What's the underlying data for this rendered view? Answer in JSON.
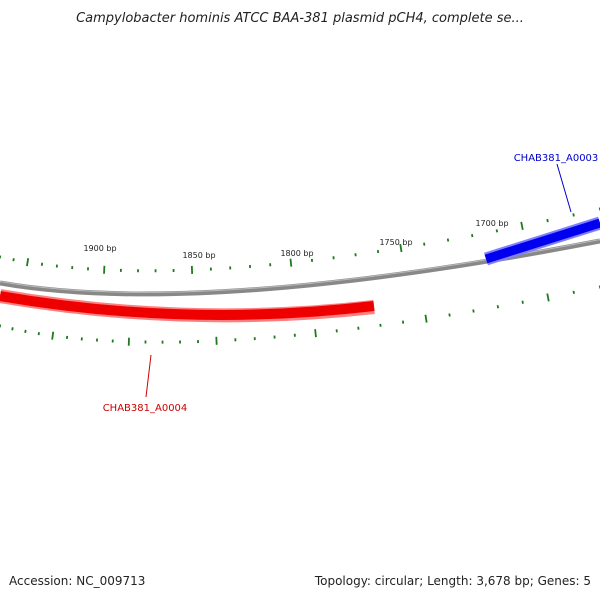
{
  "title": "Campylobacter hominis ATCC BAA-381 plasmid pCH4, complete se...",
  "footer": {
    "accession": "Accession: NC_009713",
    "summary": "Topology: circular; Length: 3,678 bp; Genes: 5"
  },
  "scale": {
    "labels": [
      "1900 bp",
      "1850 bp",
      "1800 bp",
      "1750 bp",
      "1700 bp"
    ],
    "tick_color": "#1f7a1f"
  },
  "backbone": {
    "color": "#888888"
  },
  "genes": [
    {
      "name": "CHAB381_A0003",
      "strand": "forward",
      "color": "#0000ee",
      "label_color": "#0000cc"
    },
    {
      "name": "CHAB381_A0004",
      "strand": "reverse",
      "color": "#ee0000",
      "label_color": "#cc0000"
    }
  ]
}
